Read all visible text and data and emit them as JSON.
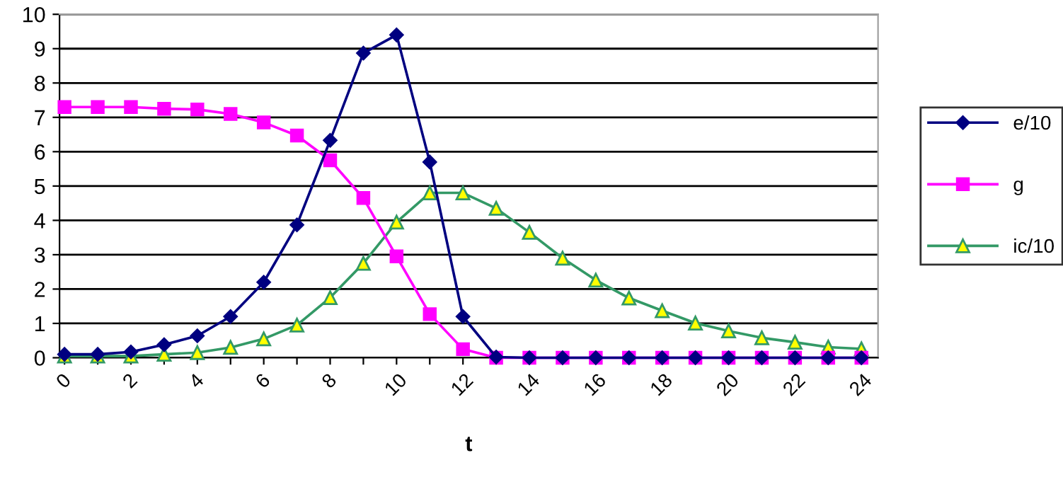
{
  "chart_data": {
    "type": "line",
    "xlabel": "t",
    "categories": [
      "0",
      null,
      "2",
      null,
      "4",
      null,
      "6",
      null,
      "8",
      null,
      "10",
      null,
      "12",
      null,
      "14",
      null,
      "16",
      null,
      "18",
      null,
      "20",
      null,
      "22",
      null,
      "24"
    ],
    "series": [
      {
        "name": "e/10",
        "color": "#000080",
        "marker": "diamond",
        "values": [
          0.1,
          0.1,
          0.17,
          0.38,
          0.64,
          1.2,
          2.2,
          3.87,
          6.33,
          8.87,
          9.4,
          5.7,
          1.2,
          0.02,
          0,
          0,
          0,
          0,
          0,
          0,
          0,
          0,
          0,
          0,
          0
        ]
      },
      {
        "name": "g",
        "color": "#ff00ff",
        "marker": "square",
        "values": [
          7.3,
          7.3,
          7.3,
          7.25,
          7.23,
          7.1,
          6.85,
          6.47,
          5.75,
          4.65,
          2.95,
          1.27,
          0.25,
          0,
          0,
          0,
          0,
          0,
          0,
          0,
          0,
          0,
          0,
          0,
          0
        ]
      },
      {
        "name": "ic/10",
        "color": "#339966",
        "marker": "triangle",
        "values": [
          0.05,
          0.05,
          0.05,
          0.1,
          0.15,
          0.3,
          0.55,
          0.95,
          1.75,
          2.75,
          3.95,
          4.8,
          4.8,
          4.35,
          3.65,
          2.9,
          2.26,
          1.74,
          1.37,
          1.01,
          0.78,
          0.58,
          0.45,
          0.31,
          0.26
        ]
      }
    ],
    "ylim": [
      0,
      10
    ],
    "yticks": [
      0,
      1,
      2,
      3,
      4,
      5,
      6,
      7,
      8,
      9,
      10
    ],
    "grid": "y",
    "legend": "right"
  }
}
